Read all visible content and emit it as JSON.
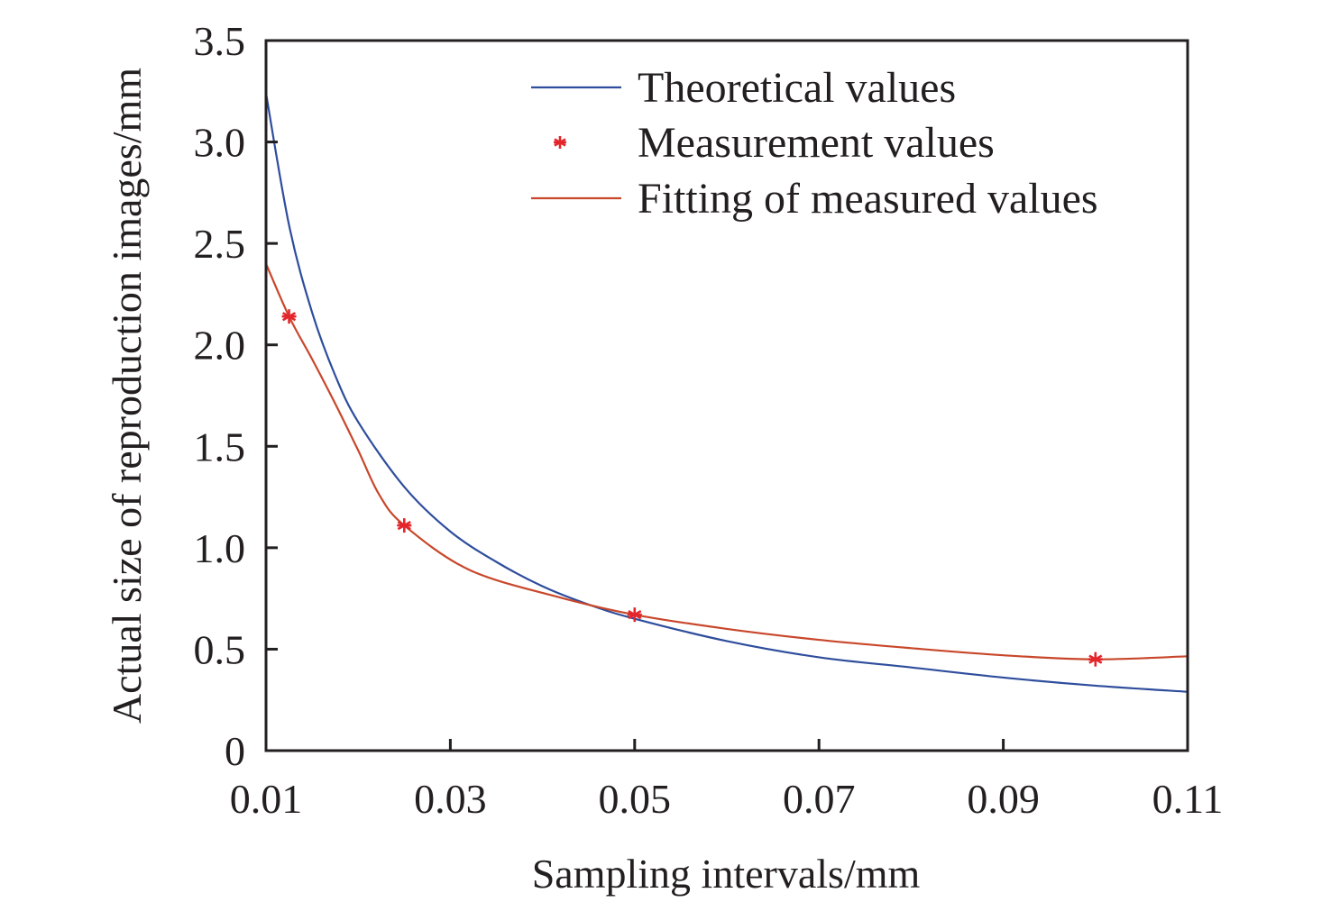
{
  "chart_data": {
    "type": "line",
    "title": "",
    "xlabel": "Sampling intervals/mm",
    "ylabel": "Actual size of reproduction images/mm",
    "xlim": [
      0.01,
      0.11
    ],
    "ylim": [
      0,
      3.5
    ],
    "grid": false,
    "legend_position": "top-right",
    "x_ticks": [
      0.01,
      0.03,
      0.05,
      0.07,
      0.09,
      0.11
    ],
    "x_tick_labels": [
      "0.01",
      "0.03",
      "0.05",
      "0.07",
      "0.09",
      "0.11"
    ],
    "y_ticks": [
      0,
      0.5,
      1.0,
      1.5,
      2.0,
      2.5,
      3.0,
      3.5
    ],
    "y_tick_labels": [
      "0",
      "0.5",
      "1.0",
      "1.5",
      "2.0",
      "2.5",
      "3.0",
      "3.5"
    ],
    "series": [
      {
        "name": "Theoretical values",
        "kind": "line",
        "color": "#2e4d9c",
        "x": [
          0.01,
          0.0125,
          0.015,
          0.0175,
          0.02,
          0.025,
          0.03,
          0.035,
          0.04,
          0.045,
          0.05,
          0.06,
          0.07,
          0.08,
          0.09,
          0.1,
          0.11
        ],
        "y": [
          3.24,
          2.59,
          2.16,
          1.85,
          1.62,
          1.3,
          1.08,
          0.93,
          0.81,
          0.72,
          0.65,
          0.54,
          0.46,
          0.41,
          0.36,
          0.32,
          0.29
        ]
      },
      {
        "name": "Measurement values",
        "kind": "scatter",
        "marker": "asterisk",
        "color": "#e3262c",
        "x": [
          0.0125,
          0.025,
          0.05,
          0.1
        ],
        "y": [
          2.14,
          1.11,
          0.67,
          0.45
        ]
      },
      {
        "name": "Fitting of measured values",
        "kind": "line",
        "color": "#c8472b",
        "x": [
          0.01,
          0.0125,
          0.015,
          0.0174,
          0.02,
          0.0223,
          0.025,
          0.0321,
          0.0419,
          0.05,
          0.06,
          0.07,
          0.08,
          0.09,
          0.1,
          0.11
        ],
        "y": [
          2.4,
          2.14,
          1.93,
          1.72,
          1.48,
          1.26,
          1.11,
          0.89,
          0.755,
          0.67,
          0.6,
          0.546,
          0.505,
          0.47,
          0.45,
          0.465
        ]
      }
    ]
  }
}
